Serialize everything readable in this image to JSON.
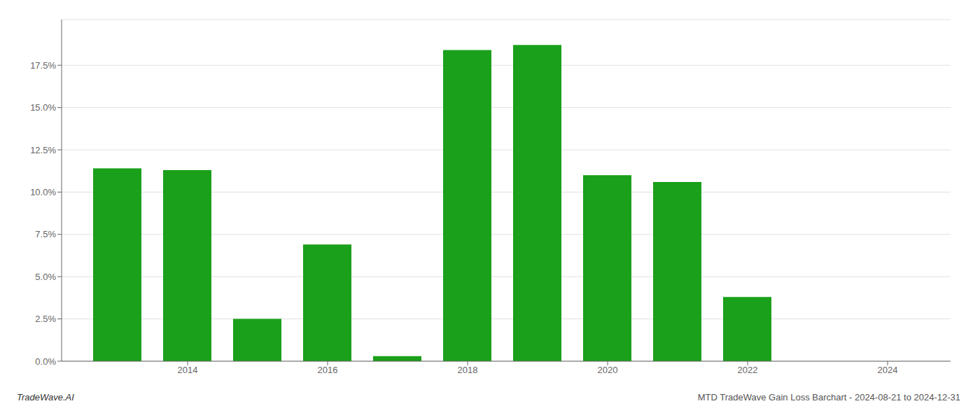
{
  "chart_data": {
    "type": "bar",
    "x": [
      2013,
      2014,
      2015,
      2016,
      2017,
      2018,
      2019,
      2020,
      2021,
      2022,
      2023
    ],
    "values": [
      0.114,
      0.113,
      0.025,
      0.069,
      0.003,
      0.184,
      0.187,
      0.11,
      0.106,
      0.038,
      0.0
    ],
    "color": "#1aa01a",
    "xlim": [
      2012.2,
      2024.9
    ],
    "xticks": [
      2014,
      2016,
      2018,
      2020,
      2022,
      2024
    ],
    "ylim": [
      0,
      0.202
    ],
    "yticks": [
      {
        "value": 0.0,
        "label": "0.0%"
      },
      {
        "value": 0.025,
        "label": "2.5%"
      },
      {
        "value": 0.05,
        "label": "5.0%"
      },
      {
        "value": 0.075,
        "label": "7.5%"
      },
      {
        "value": 0.1,
        "label": "10.0%"
      },
      {
        "value": 0.125,
        "label": "12.5%"
      },
      {
        "value": 0.15,
        "label": "15.0%"
      },
      {
        "value": 0.175,
        "label": "17.5%"
      }
    ],
    "grid": true,
    "annotations": [
      "TradeWave.AI",
      "MTD TradeWave Gain Loss Barchart - 2024-08-21 to 2024-12-31"
    ]
  }
}
